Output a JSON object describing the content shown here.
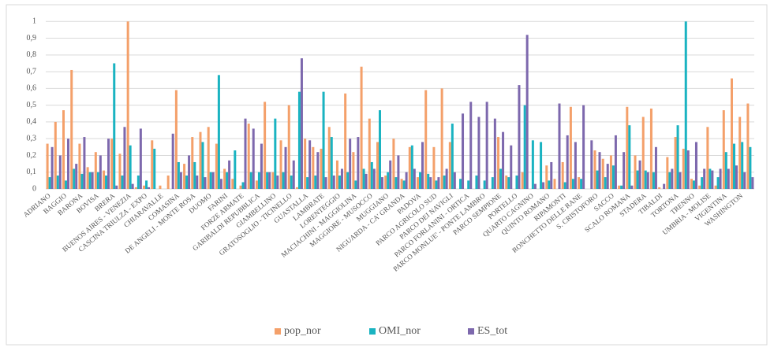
{
  "chart_data": {
    "type": "bar",
    "categories": [
      "ADRIANO",
      null,
      "BAGGIO",
      null,
      "BARONA",
      null,
      "BOVISA",
      null,
      "BRERA",
      null,
      "BUENOS AIRES - VENEZIA",
      null,
      "CASCINA TRIULZA - EXPO",
      null,
      "CHIARAVALLE",
      null,
      "COMASINA",
      null,
      "DE ANGELI - MONTE ROSA",
      null,
      "DUOMO",
      null,
      "FARINI",
      null,
      "FORZE ARMATE",
      null,
      "GARIBALDI REPUBBLICA",
      null,
      "GIAMBELLINO",
      null,
      "GRATOSOGLIO - TICINELLO",
      null,
      "GUASTALLA",
      null,
      "LAMBRATE",
      null,
      "LORENTEGGIO",
      null,
      "MACIACHINI - MAGGIOLINA",
      null,
      "MAGGIORE - MUSOCCO",
      null,
      "MUGGIANO",
      null,
      "NIGUARDA - CA' GRANDA",
      null,
      "PADOVA",
      null,
      "PARCO AGRICOLO SUD",
      null,
      "PARCO DEI NAVIGLI",
      null,
      "PARCO FORLANINI - ORTICA",
      null,
      "PARCO MONLUE' - PONTE LAMBRO",
      null,
      "PARCO SEMPIONE",
      null,
      "PORTELLO",
      null,
      "QUARTO CAGNINO",
      null,
      "QUINTO ROMANO",
      null,
      "RIPAMONTI",
      null,
      "RONCHETTO DELLE RANE",
      null,
      "S. CRISTOFORO",
      null,
      "SACCO",
      null,
      "SCALO ROMANA",
      null,
      "STADERA",
      null,
      "TIBALDI",
      null,
      "TORTONA",
      null,
      "TRENNO",
      null,
      "UMBRIA - MOLISE",
      null,
      "VIGENTINA",
      null,
      "WASHINGTON",
      null
    ],
    "series": [
      {
        "name": "pop_nor",
        "color": "#f4a06a",
        "values": [
          0.27,
          0.4,
          0.47,
          0.71,
          0.27,
          0.13,
          0.22,
          0.11,
          0.3,
          0.21,
          1.0,
          0.01,
          0.02,
          0.29,
          0.02,
          0.08,
          0.59,
          0.15,
          0.31,
          0.34,
          0.37,
          0.27,
          0.12,
          0.06,
          0.02,
          0.39,
          0.05,
          0.52,
          0.1,
          0.29,
          0.5,
          0.01,
          0.3,
          0.25,
          0.24,
          0.37,
          0.17,
          0.57,
          0.22,
          0.73,
          0.42,
          0.28,
          0.08,
          0.3,
          0.06,
          0.25,
          0.07,
          0.59,
          0.25,
          0.6,
          0.28,
          0.0,
          0.0,
          0.0,
          0.0,
          0.0,
          0.31,
          0.08,
          0.0,
          0.1,
          0.0,
          0.0,
          0.14,
          0.06,
          0.16,
          0.49,
          0.07,
          0.0,
          0.23,
          0.18,
          0.2,
          0.02,
          0.49,
          0.2,
          0.43,
          0.48,
          0.01,
          0.19,
          0.31,
          0.24,
          0.06,
          0.02,
          0.37,
          0.02,
          0.47,
          0.66,
          0.43,
          0.51
        ]
      },
      {
        "name": "OMI_nor",
        "color": "#1ab3c1",
        "values": [
          0.07,
          0.08,
          0.05,
          0.12,
          0.09,
          0.1,
          0.1,
          0.08,
          0.75,
          0.08,
          0.26,
          0.08,
          0.05,
          0.24,
          0.0,
          0.0,
          0.16,
          0.08,
          0.16,
          0.28,
          0.1,
          0.68,
          0.1,
          0.23,
          0.04,
          0.1,
          0.1,
          0.1,
          0.42,
          0.1,
          0.08,
          0.58,
          0.07,
          0.08,
          0.58,
          0.31,
          0.08,
          0.1,
          0.05,
          0.12,
          0.16,
          0.47,
          0.1,
          0.07,
          0.05,
          0.26,
          0.1,
          0.09,
          0.05,
          0.08,
          0.39,
          0.06,
          0.05,
          0.08,
          0.05,
          0.07,
          0.12,
          0.07,
          0.08,
          0.5,
          0.29,
          0.28,
          0.05,
          0.0,
          0.04,
          0.06,
          0.06,
          0.0,
          0.11,
          0.07,
          0.14,
          0.02,
          0.38,
          0.11,
          0.11,
          0.1,
          0.0,
          0.1,
          0.38,
          1.0,
          0.05,
          0.07,
          0.12,
          0.07,
          0.22,
          0.27,
          0.28,
          0.25
        ]
      },
      {
        "name": "ES_tot",
        "color": "#7d68ad",
        "values": [
          0.25,
          0.2,
          0.3,
          0.15,
          0.31,
          0.1,
          0.2,
          0.3,
          0.02,
          0.37,
          0.03,
          0.36,
          0.01,
          0.0,
          0.0,
          0.33,
          0.1,
          0.2,
          0.08,
          0.07,
          0.1,
          0.06,
          0.17,
          0.0,
          0.42,
          0.36,
          0.27,
          0.1,
          0.08,
          0.25,
          0.17,
          0.78,
          0.29,
          0.22,
          0.07,
          0.08,
          0.12,
          0.3,
          0.31,
          0.09,
          0.12,
          0.07,
          0.17,
          0.2,
          0.1,
          0.12,
          0.28,
          0.07,
          0.07,
          0.12,
          0.1,
          0.45,
          0.52,
          0.43,
          0.52,
          0.42,
          0.34,
          0.26,
          0.62,
          0.92,
          0.03,
          0.04,
          0.16,
          0.51,
          0.32,
          0.28,
          0.5,
          0.29,
          0.22,
          0.15,
          0.32,
          0.22,
          0.02,
          0.17,
          0.1,
          0.25,
          0.03,
          0.12,
          0.1,
          0.23,
          0.28,
          0.12,
          0.11,
          0.12,
          0.12,
          0.14,
          0.1,
          0.07
        ]
      }
    ],
    "ylim": [
      0,
      1.1
    ],
    "yticks": [
      0,
      {
        "value": 0.1,
        "label": "0,1"
      },
      {
        "value": 0.2,
        "label": "0,2"
      },
      {
        "value": 0.3,
        "label": "0,3"
      },
      {
        "value": 0.4,
        "label": "0,4"
      },
      {
        "value": 0.5,
        "label": "0,5"
      },
      {
        "value": 0.6,
        "label": "0,6"
      },
      {
        "value": 0.7,
        "label": "0,7"
      },
      {
        "value": 0.8,
        "label": "0,8"
      },
      {
        "value": 0.9,
        "label": "0,9"
      },
      1,
      {
        "value": 1.1,
        "label": "1,1"
      }
    ],
    "grid": true,
    "legend": "bottom"
  }
}
